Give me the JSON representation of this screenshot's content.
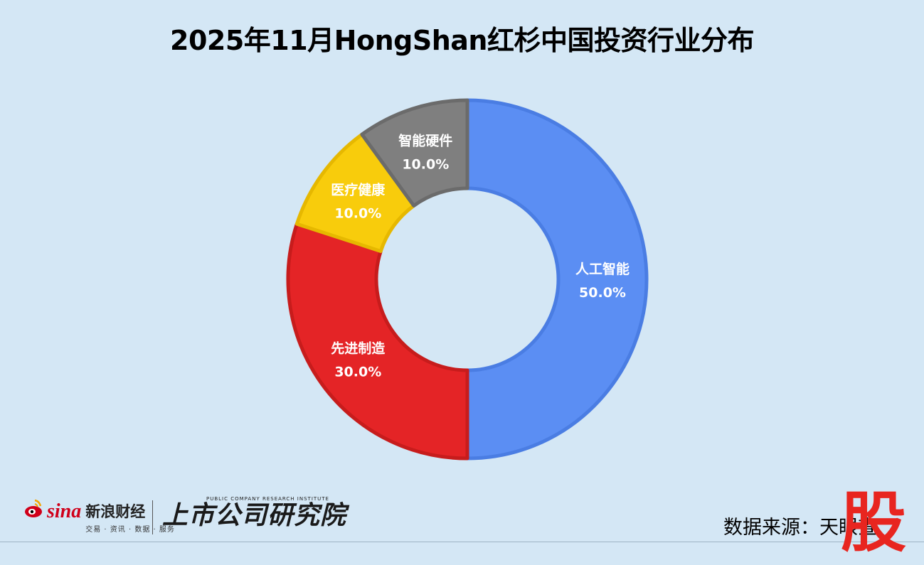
{
  "title": "2025年11月HongShan红杉中国投资行业分布",
  "chart_data": {
    "type": "pie",
    "variant": "donut",
    "title": "2025年11月HongShan红杉中国投资行业分布",
    "slices": [
      {
        "label": "人工智能",
        "value": 50.0,
        "display": "50.0%",
        "color": "#5b8ef3",
        "border": "#4a7de3",
        "label_color": "#ffffff"
      },
      {
        "label": "先进制造",
        "value": 30.0,
        "display": "30.0%",
        "color": "#e42426",
        "border": "#c71c1c",
        "label_color": "#ffffff"
      },
      {
        "label": "医疗健康",
        "value": 10.0,
        "display": "10.0%",
        "color": "#f8cc0c",
        "border": "#e6b800",
        "label_color": "#ffffff"
      },
      {
        "label": "智能硬件",
        "value": 10.0,
        "display": "10.0%",
        "color": "#7f7f7f",
        "border": "#6b6b6b",
        "label_color": "#ffffff"
      }
    ]
  },
  "footer": {
    "sina_brand": "sina",
    "sina_name": "新浪财经",
    "sina_sub": "交易 · 资讯 · 数据 · 服务",
    "institute_en": "PUBLIC COMPANY RESEARCH INSTITUTE",
    "institute_cn": "上市公司研究院",
    "source_text": "数据来源：天眼查",
    "stock_mark": "股"
  }
}
